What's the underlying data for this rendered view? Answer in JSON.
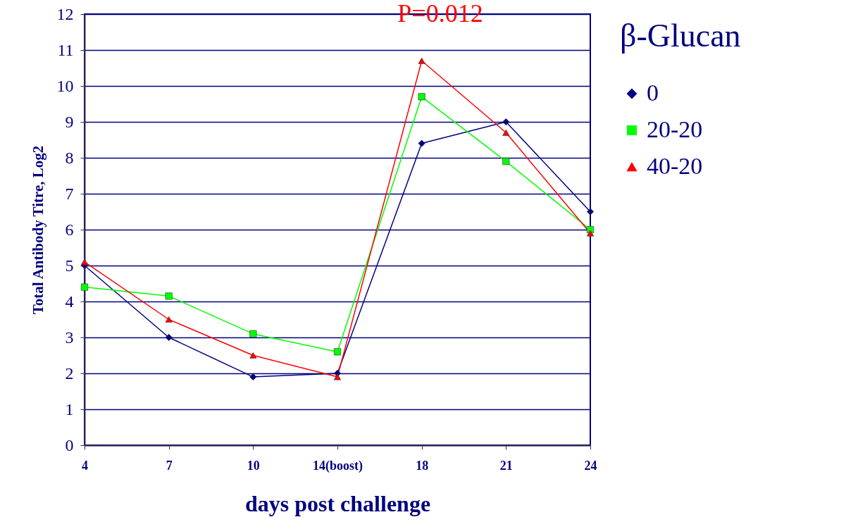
{
  "chart_data": {
    "type": "line",
    "xlabel": "days post challenge",
    "ylabel": "Total Antibody Titre,  Log2",
    "legend_title": "β-Glucan",
    "categories": [
      "4",
      "7",
      "10",
      "14(boost)",
      "18",
      "21",
      "24"
    ],
    "series": [
      {
        "name": "0",
        "color": "#000080",
        "marker": "diamond",
        "values": [
          5.0,
          3.0,
          1.9,
          2.0,
          8.4,
          9.0,
          6.5
        ]
      },
      {
        "name": "20-20",
        "color": "#00ff00",
        "marker": "square",
        "values": [
          4.4,
          4.15,
          3.1,
          2.6,
          9.7,
          7.9,
          6.0
        ]
      },
      {
        "name": "40-20",
        "color": "#ff0000",
        "marker": "triangle",
        "values": [
          5.1,
          3.5,
          2.5,
          1.9,
          10.7,
          8.7,
          5.9
        ]
      }
    ],
    "ylim": [
      0,
      12
    ],
    "yticks": [
      0,
      1,
      2,
      3,
      4,
      5,
      6,
      7,
      8,
      9,
      10,
      11,
      12
    ],
    "grid": "y",
    "legend": "top right",
    "line_style": "solid",
    "annotations": [
      "P=0.012"
    ]
  }
}
